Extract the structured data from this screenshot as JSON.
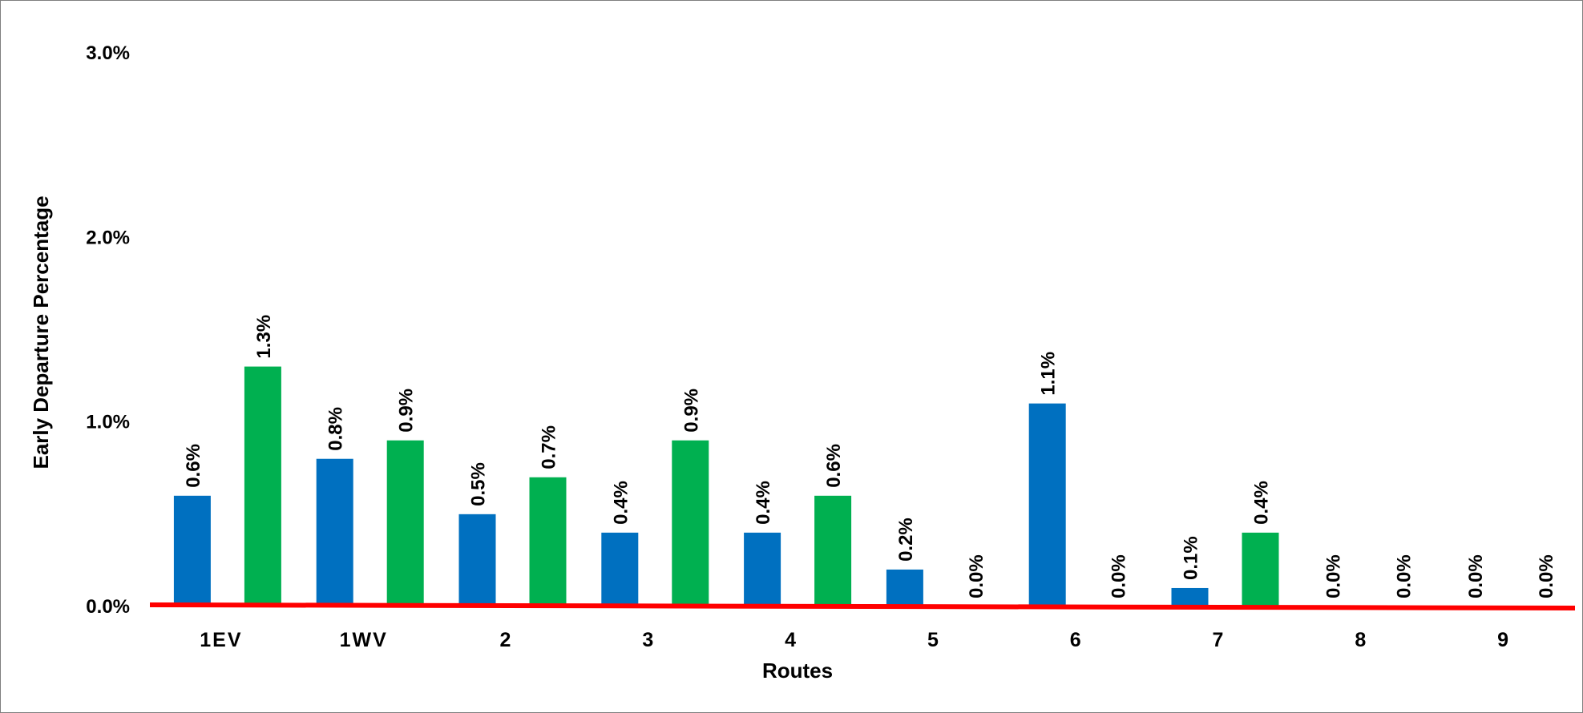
{
  "chart_data": {
    "type": "bar",
    "title": "",
    "xlabel": "Routes",
    "ylabel": "Early Departure Percentage",
    "ylim": [
      0,
      3
    ],
    "yticks": [
      "0.0%",
      "1.0%",
      "2.0%",
      "3.0%"
    ],
    "categories": [
      "1EV",
      "1WV",
      "2",
      "3",
      "4",
      "5",
      "6",
      "7",
      "8",
      "9"
    ],
    "series": [
      {
        "color": "#0070C0",
        "values": [
          0.6,
          0.8,
          0.5,
          0.4,
          0.4,
          0.2,
          1.1,
          0.1,
          0.0,
          0.0
        ],
        "labels": [
          "0.6%",
          "0.8%",
          "0.5%",
          "0.4%",
          "0.4%",
          "0.2%",
          "1.1%",
          "0.1%",
          "0.0%",
          "0.0%"
        ]
      },
      {
        "color": "#00B050",
        "values": [
          1.3,
          0.9,
          0.7,
          0.9,
          0.6,
          0.0,
          0.0,
          0.4,
          0.0,
          0.0
        ],
        "labels": [
          "1.3%",
          "0.9%",
          "0.7%",
          "0.9%",
          "0.6%",
          "0.0%",
          "0.0%",
          "0.4%",
          "0.0%",
          "0.0%"
        ]
      }
    ],
    "baseline_color": "#FF0000",
    "grid": false,
    "legend": "none"
  }
}
